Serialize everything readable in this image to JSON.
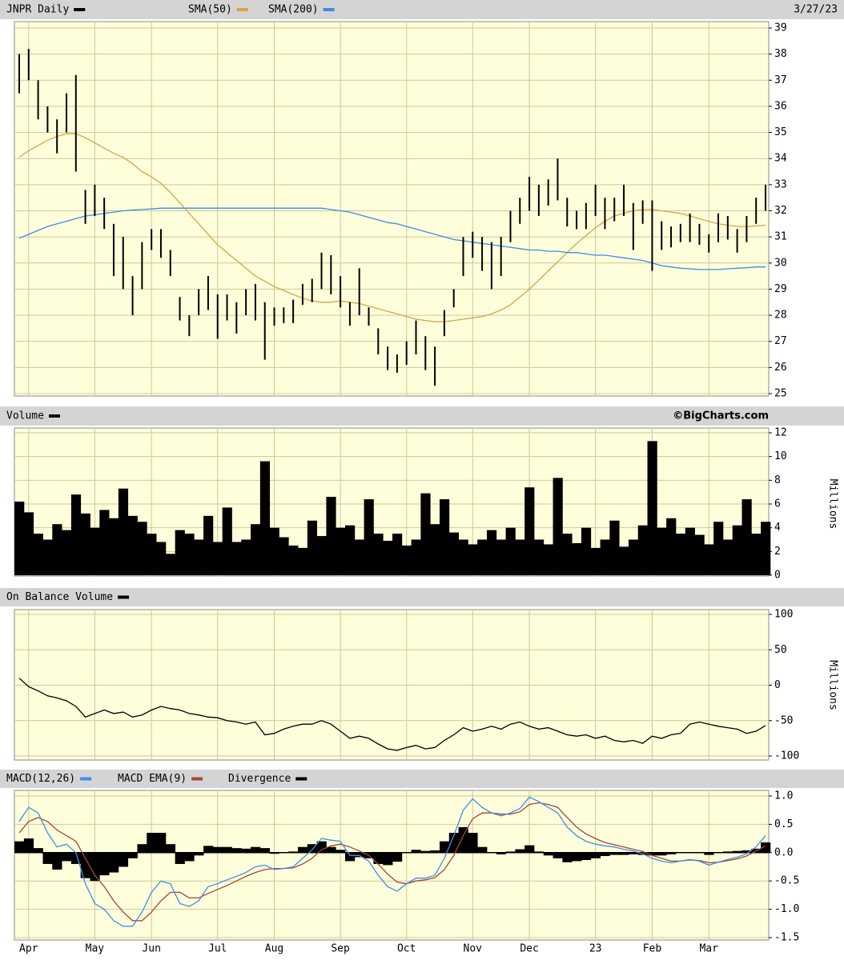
{
  "source": "©BigCharts.com",
  "chart_data": [
    {
      "type": "price",
      "date": "3/27/23",
      "ylim": [
        25,
        39
      ],
      "yticks": [
        25,
        26,
        27,
        28,
        29,
        30,
        31,
        32,
        33,
        34,
        35,
        36,
        37,
        38,
        39
      ],
      "grid": true,
      "series": [
        {
          "name": "JNPR Daily",
          "color": "#000000",
          "high": [
            38,
            38.2,
            37,
            36,
            35.5,
            36.5,
            37.2,
            32.8,
            33,
            32.5,
            31.5,
            31,
            29.5,
            30.8,
            31.3,
            31.3,
            30.5,
            28.7,
            28,
            29,
            29.5,
            28.8,
            28.8,
            28.5,
            29,
            29.2,
            28.5,
            28.3,
            28.3,
            28.6,
            29.2,
            29.4,
            30.4,
            30.3,
            29.5,
            28.5,
            29.8,
            28.3,
            27.5,
            26.8,
            26.5,
            27,
            27.8,
            27.2,
            26.8,
            28.2,
            29,
            31,
            31.2,
            31,
            30.8,
            31,
            32,
            32.5,
            33.3,
            33,
            33.2,
            34,
            32.5,
            32,
            32.3,
            33,
            32.5,
            32.5,
            33,
            32.3,
            32.4,
            32.4,
            31.6,
            31.4,
            31.5,
            31.9,
            31.5,
            31.1,
            31.9,
            31.8,
            31.3,
            31.8,
            32.5,
            33
          ],
          "low": [
            36.5,
            37,
            35.5,
            35,
            34.2,
            35,
            33.5,
            31.5,
            31.8,
            31.3,
            29.5,
            29,
            28,
            29,
            30.5,
            30.2,
            29.5,
            27.8,
            27.2,
            28,
            28.2,
            27.1,
            27.8,
            27.3,
            28,
            27.8,
            26.3,
            27.6,
            27.7,
            27.7,
            28.4,
            28.5,
            29,
            28.8,
            28.3,
            27.6,
            28,
            27.6,
            26.5,
            25.9,
            25.8,
            26.1,
            26.5,
            25.9,
            25.3,
            27.2,
            28.3,
            29.5,
            30.2,
            29.7,
            29,
            29.5,
            30.8,
            31.5,
            32,
            31.8,
            32.2,
            32.4,
            31.4,
            31.3,
            31.3,
            31.8,
            31.3,
            31.6,
            31.8,
            30.5,
            31.5,
            29.7,
            30.5,
            30.6,
            30.8,
            30.8,
            30.7,
            30.4,
            30.8,
            30.9,
            30.4,
            30.8,
            31.5,
            32
          ]
        },
        {
          "name": "SMA(50)",
          "color": "#d9a24a",
          "values": [
            34.05,
            34.3,
            34.5,
            34.7,
            34.85,
            34.95,
            34.95,
            34.8,
            34.6,
            34.4,
            34.2,
            34.05,
            33.8,
            33.5,
            33.3,
            33.05,
            32.7,
            32.3,
            31.9,
            31.5,
            31.1,
            30.7,
            30.4,
            30.1,
            29.8,
            29.5,
            29.3,
            29.1,
            28.95,
            28.8,
            28.65,
            28.55,
            28.5,
            28.5,
            28.55,
            28.5,
            28.45,
            28.35,
            28.25,
            28.15,
            28.05,
            27.95,
            27.85,
            27.8,
            27.75,
            27.75,
            27.8,
            27.85,
            27.9,
            27.95,
            28.05,
            28.2,
            28.4,
            28.7,
            29,
            29.35,
            29.7,
            30.05,
            30.4,
            30.75,
            31.05,
            31.35,
            31.6,
            31.8,
            31.9,
            32,
            32.05,
            32.05,
            32,
            31.95,
            31.9,
            31.8,
            31.7,
            31.6,
            31.5,
            31.45,
            31.4,
            31.4,
            31.42,
            31.45
          ]
        },
        {
          "name": "SMA(200)",
          "color": "#3b8de6",
          "values": [
            30.95,
            31.1,
            31.25,
            31.4,
            31.5,
            31.6,
            31.7,
            31.8,
            31.85,
            31.9,
            31.95,
            32,
            32.03,
            32.05,
            32.07,
            32.1,
            32.1,
            32.1,
            32.1,
            32.1,
            32.1,
            32.1,
            32.1,
            32.1,
            32.1,
            32.1,
            32.1,
            32.1,
            32.1,
            32.1,
            32.1,
            32.1,
            32.1,
            32.05,
            32,
            31.95,
            31.85,
            31.75,
            31.65,
            31.55,
            31.5,
            31.4,
            31.3,
            31.2,
            31.1,
            31,
            30.9,
            30.85,
            30.8,
            30.75,
            30.7,
            30.65,
            30.6,
            30.55,
            30.5,
            30.5,
            30.45,
            30.45,
            30.4,
            30.4,
            30.35,
            30.3,
            30.3,
            30.25,
            30.2,
            30.15,
            30.1,
            30,
            29.9,
            29.85,
            29.8,
            29.78,
            29.75,
            29.75,
            29.75,
            29.78,
            29.8,
            29.82,
            29.85,
            29.85
          ]
        }
      ]
    },
    {
      "type": "volume",
      "y_label": "Millions",
      "ylim": [
        0,
        12
      ],
      "yticks": [
        0,
        2,
        4,
        6,
        8,
        10,
        12
      ],
      "grid": true,
      "series": [
        {
          "name": "Volume",
          "color": "#000000",
          "values": [
            6.2,
            5.3,
            3.5,
            3,
            4.3,
            3.8,
            6.8,
            5.2,
            4,
            5.5,
            4.8,
            7.3,
            5,
            4.5,
            3.5,
            2.8,
            1.8,
            3.8,
            3.5,
            3,
            5,
            2.8,
            5.7,
            2.8,
            3,
            4.3,
            9.6,
            4,
            3.2,
            2.5,
            2.3,
            4.6,
            3.3,
            6.6,
            4,
            4.2,
            3,
            6.4,
            3.5,
            2.9,
            3.5,
            2.5,
            3,
            6.9,
            4.3,
            6.4,
            3.6,
            3,
            2.6,
            3,
            3.8,
            3,
            4,
            3,
            7.4,
            3,
            2.6,
            8.2,
            3.5,
            2.7,
            4,
            2.3,
            3,
            4.6,
            2.4,
            3,
            4.2,
            11.3,
            4,
            4.8,
            3.5,
            4,
            3.4,
            2.6,
            4.5,
            3,
            4.2,
            6.4,
            3.5,
            4.5
          ]
        }
      ]
    },
    {
      "type": "line",
      "y_label": "Millions",
      "ylim": [
        -100,
        100
      ],
      "yticks": [
        -100,
        -50,
        0,
        50,
        100
      ],
      "grid": true,
      "series": [
        {
          "name": "On Balance Volume",
          "color": "#000000",
          "values": [
            10,
            -2,
            -8,
            -15,
            -18,
            -22,
            -30,
            -45,
            -40,
            -35,
            -40,
            -38,
            -45,
            -42,
            -35,
            -30,
            -33,
            -35,
            -40,
            -42,
            -45,
            -46,
            -50,
            -52,
            -55,
            -52,
            -70,
            -68,
            -62,
            -58,
            -55,
            -55,
            -50,
            -55,
            -65,
            -75,
            -72,
            -75,
            -83,
            -90,
            -92,
            -88,
            -85,
            -90,
            -88,
            -78,
            -70,
            -60,
            -65,
            -62,
            -58,
            -62,
            -55,
            -52,
            -58,
            -62,
            -60,
            -65,
            -70,
            -72,
            -70,
            -75,
            -72,
            -78,
            -80,
            -78,
            -82,
            -72,
            -75,
            -70,
            -68,
            -55,
            -52,
            -55,
            -58,
            -60,
            -62,
            -68,
            -65,
            -57
          ]
        }
      ]
    },
    {
      "type": "macd",
      "ylim": [
        -1.5,
        1
      ],
      "yticks": [
        -1.5,
        {
          "value": -1,
          "label": "-1.0"
        },
        -0.5,
        {
          "value": 0,
          "label": "0.0"
        },
        0.5,
        {
          "value": 1,
          "label": "1.0"
        }
      ],
      "grid": true,
      "categories": [
        null,
        "Apr",
        null,
        null,
        null,
        null,
        null,
        null,
        "May",
        null,
        null,
        null,
        null,
        null,
        "Jun",
        null,
        null,
        null,
        null,
        null,
        null,
        "Jul",
        null,
        null,
        null,
        null,
        null,
        "Aug",
        null,
        null,
        null,
        null,
        null,
        null,
        "Sep",
        null,
        null,
        null,
        null,
        null,
        null,
        "Oct",
        null,
        null,
        null,
        null,
        null,
        null,
        "Nov",
        null,
        null,
        null,
        null,
        null,
        "Dec",
        null,
        null,
        null,
        null,
        null,
        null,
        "23",
        null,
        null,
        null,
        null,
        null,
        "Feb",
        null,
        null,
        null,
        null,
        null,
        "Mar",
        null,
        null,
        null,
        null,
        null,
        null
      ],
      "series": [
        {
          "name": "MACD(12,26)",
          "color": "#3c8fe8",
          "values": [
            0.55,
            0.8,
            0.7,
            0.35,
            0.1,
            0.15,
            0,
            -0.55,
            -0.9,
            -1,
            -1.2,
            -1.3,
            -1.3,
            -1.05,
            -0.7,
            -0.5,
            -0.55,
            -0.9,
            -0.95,
            -0.85,
            -0.6,
            -0.55,
            -0.48,
            -0.42,
            -0.35,
            -0.25,
            -0.22,
            -0.3,
            -0.28,
            -0.25,
            -0.1,
            0.05,
            0.25,
            0.22,
            0.2,
            -0.05,
            -0.05,
            -0.15,
            -0.4,
            -0.6,
            -0.68,
            -0.55,
            -0.45,
            -0.45,
            -0.4,
            -0.1,
            0.3,
            0.75,
            0.95,
            0.8,
            0.7,
            0.65,
            0.7,
            0.78,
            0.98,
            0.9,
            0.8,
            0.7,
            0.45,
            0.3,
            0.2,
            0.15,
            0.12,
            0.1,
            0.06,
            0.03,
            -0.02,
            -0.1,
            -0.15,
            -0.18,
            -0.15,
            -0.12,
            -0.15,
            -0.22,
            -0.17,
            -0.12,
            -0.08,
            -0.02,
            0.1,
            0.3
          ]
        },
        {
          "name": "MACD EMA(9)",
          "color": "#a8443a",
          "values": [
            0.35,
            0.55,
            0.62,
            0.55,
            0.4,
            0.3,
            0.2,
            -0.1,
            -0.4,
            -0.6,
            -0.85,
            -1.05,
            -1.2,
            -1.2,
            -1.05,
            -0.85,
            -0.7,
            -0.7,
            -0.8,
            -0.8,
            -0.72,
            -0.65,
            -0.58,
            -0.5,
            -0.42,
            -0.35,
            -0.3,
            -0.28,
            -0.28,
            -0.27,
            -0.2,
            -0.1,
            0.05,
            0.12,
            0.15,
            0.1,
            0.03,
            -0.05,
            -0.2,
            -0.38,
            -0.52,
            -0.55,
            -0.5,
            -0.48,
            -0.44,
            -0.3,
            -0.05,
            0.3,
            0.6,
            0.7,
            0.7,
            0.68,
            0.68,
            0.72,
            0.85,
            0.88,
            0.85,
            0.8,
            0.62,
            0.45,
            0.33,
            0.25,
            0.18,
            0.14,
            0.1,
            0.06,
            0.02,
            -0.05,
            -0.1,
            -0.15,
            -0.15,
            -0.13,
            -0.14,
            -0.18,
            -0.17,
            -0.14,
            -0.11,
            -0.06,
            0.03,
            0.12
          ]
        },
        {
          "name": "Divergence",
          "color": "#000000",
          "values": [
            0.2,
            0.25,
            0.08,
            -0.2,
            -0.3,
            -0.15,
            -0.2,
            -0.45,
            -0.5,
            -0.4,
            -0.35,
            -0.25,
            -0.1,
            0.15,
            0.35,
            0.35,
            0.15,
            -0.2,
            -0.15,
            -0.05,
            0.12,
            0.1,
            0.1,
            0.08,
            0.07,
            0.1,
            0.08,
            -0.02,
            0,
            0.02,
            0.1,
            0.15,
            0.2,
            0.1,
            0.05,
            -0.15,
            -0.08,
            -0.1,
            -0.2,
            -0.22,
            -0.16,
            0,
            0.05,
            0.03,
            0.04,
            0.2,
            0.35,
            0.45,
            0.35,
            0.1,
            0,
            -0.03,
            0.02,
            0.06,
            0.13,
            0.02,
            -0.05,
            -0.1,
            -0.17,
            -0.15,
            -0.13,
            -0.1,
            -0.06,
            -0.04,
            -0.04,
            -0.03,
            -0.04,
            -0.05,
            -0.05,
            -0.03,
            0,
            0.01,
            -0.01,
            -0.04,
            0,
            0.02,
            0.03,
            0.04,
            0.07,
            0.18
          ]
        }
      ]
    }
  ]
}
